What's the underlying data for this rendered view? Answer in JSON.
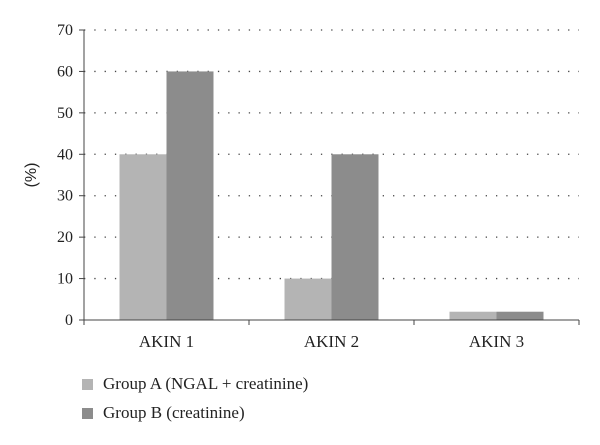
{
  "chart_data": {
    "type": "bar",
    "categories": [
      "AKIN 1",
      "AKIN 2",
      "AKIN 3"
    ],
    "series": [
      {
        "name": "Group A (NGAL + creatinine)",
        "values": [
          40,
          10,
          2
        ],
        "color": "#b4b4b4"
      },
      {
        "name": "Group B (creatinine)",
        "values": [
          60,
          40,
          2
        ],
        "color": "#8c8c8c"
      }
    ],
    "title": "",
    "xlabel": "",
    "ylabel": "(%)",
    "ylim": [
      0,
      70
    ],
    "yticks": [
      "0",
      "10",
      "20",
      "30",
      "40",
      "50",
      "60",
      "70"
    ],
    "grid": "dotted-horizontal",
    "legend_position": "bottom-left"
  }
}
